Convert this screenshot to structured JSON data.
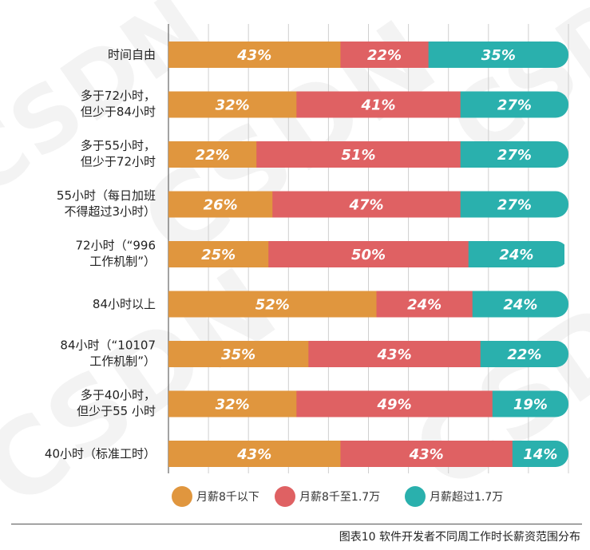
{
  "chart_data": {
    "type": "bar",
    "orientation": "horizontal-stacked-percent",
    "categories": [
      [
        "时间自由"
      ],
      [
        "多于72小时，",
        "但少于84小时"
      ],
      [
        "多于55小时，",
        "但少于72小时"
      ],
      [
        "55小时（每日加班",
        "不得超过3小时）"
      ],
      [
        "72小时（“996",
        "工作机制”）"
      ],
      [
        "84小时以上"
      ],
      [
        "84小时（“10107",
        "工作机制”）"
      ],
      [
        "多于40小时，",
        "但少于55 小时"
      ],
      [
        "40小时（标准工时）"
      ]
    ],
    "series": [
      {
        "name": "月薪8千以下",
        "color": "#E0963E",
        "values": [
          43,
          32,
          22,
          26,
          25,
          52,
          35,
          32,
          43
        ]
      },
      {
        "name": "月薪8千至1.7万",
        "color": "#DF6163",
        "values": [
          22,
          41,
          51,
          47,
          50,
          24,
          43,
          49,
          43
        ]
      },
      {
        "name": "月薪超过1.7万",
        "color": "#2AB0AD",
        "values": [
          35,
          27,
          27,
          27,
          24,
          24,
          22,
          19,
          14
        ]
      }
    ],
    "value_suffix": "%",
    "xlim": [
      0,
      100
    ],
    "grid": true,
    "legend": "bottom-center"
  },
  "caption": "图表10 软件开发者不同周工作时长薪资范围分布",
  "watermark": "CSDN"
}
